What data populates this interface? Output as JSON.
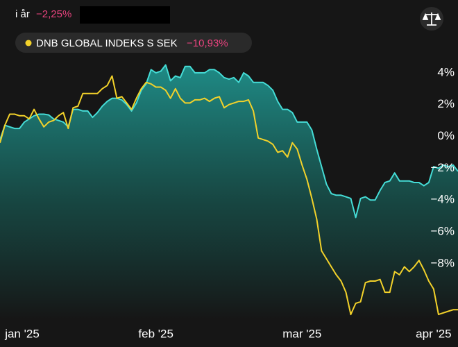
{
  "header": {
    "period": "i år",
    "return": "−2,25%"
  },
  "chart_data": {
    "type": "line",
    "categories": [
      null,
      null,
      null,
      null,
      "jan '25",
      null,
      null,
      null,
      null,
      null,
      null,
      null,
      null,
      null,
      null,
      null,
      null,
      null,
      null,
      null,
      null,
      null,
      null,
      null,
      null,
      null,
      null,
      null,
      null,
      null,
      null,
      null,
      "feb '25",
      null,
      null,
      null,
      null,
      null,
      null,
      null,
      null,
      null,
      null,
      null,
      null,
      null,
      null,
      null,
      null,
      null,
      null,
      null,
      null,
      null,
      null,
      null,
      null,
      null,
      null,
      null,
      null,
      null,
      "mar '25",
      null,
      null,
      null,
      null,
      null,
      null,
      null,
      null,
      null,
      null,
      null,
      null,
      null,
      null,
      null,
      null,
      null,
      null,
      null,
      null,
      null,
      null,
      null,
      null,
      null,
      null,
      "apr '25",
      null,
      null,
      null,
      null,
      null
    ],
    "series": [
      {
        "color": "#45dcd6",
        "area": true,
        "values": [
          -0.2,
          0.7,
          0.6,
          0.5,
          0.5,
          0.9,
          1.1,
          1.3,
          1.4,
          1.4,
          1.35,
          1.1,
          1.0,
          0.9,
          0.6,
          1.7,
          1.7,
          1.6,
          1.6,
          1.2,
          1.5,
          1.9,
          2.2,
          2.4,
          2.4,
          2.3,
          2.0,
          1.6,
          2.1,
          2.9,
          3.3,
          4.2,
          4.0,
          4.1,
          4.5,
          3.5,
          3.8,
          3.7,
          4.4,
          4.4,
          4.0,
          4.0,
          4.0,
          4.2,
          4.2,
          4.0,
          3.7,
          3.6,
          3.7,
          3.4,
          4.0,
          3.8,
          3.4,
          3.4,
          3.4,
          3.2,
          2.9,
          2.2,
          1.7,
          1.7,
          1.5,
          0.9,
          0.9,
          0.9,
          0.4,
          -0.8,
          -1.9,
          -3.0,
          -3.6,
          -3.7,
          -3.7,
          -3.8,
          -3.9,
          -5.1,
          -3.9,
          -3.8,
          -4.0,
          -4.0,
          -3.4,
          -2.9,
          -2.8,
          -2.3,
          -2.8,
          -2.8,
          -2.8,
          -2.9,
          -2.9,
          -3.1,
          -2.9,
          -1.9,
          -2.0,
          -1.8,
          -1.9,
          -1.8,
          -2.2
        ]
      },
      {
        "name": "DNB GLOBAL INDEKS S SEK",
        "return": "−10,93%",
        "color": "#f3d22a",
        "area": false,
        "values": [
          -0.4,
          0.7,
          1.4,
          1.4,
          1.3,
          1.3,
          1.1,
          1.7,
          1.1,
          0.6,
          0.9,
          1.0,
          1.3,
          1.5,
          0.5,
          1.8,
          1.9,
          2.7,
          2.7,
          2.7,
          2.7,
          3.0,
          3.2,
          3.8,
          2.4,
          2.5,
          2.1,
          1.7,
          2.4,
          3.0,
          3.4,
          3.3,
          3.1,
          3.1,
          2.9,
          2.4,
          3.0,
          2.4,
          2.1,
          2.1,
          2.3,
          2.3,
          2.4,
          2.2,
          2.4,
          2.5,
          1.8,
          2.0,
          2.1,
          2.2,
          2.2,
          2.3,
          1.6,
          -0.1,
          -0.2,
          -0.3,
          -0.5,
          -1.0,
          -0.9,
          -1.3,
          -0.4,
          -0.8,
          -1.8,
          -2.7,
          -3.9,
          -5.2,
          -7.2,
          -7.7,
          -8.2,
          -8.7,
          -9.1,
          -9.8,
          -11.2,
          -10.5,
          -10.4,
          -9.2,
          -9.1,
          -9.1,
          -9.0,
          -9.8,
          -9.8,
          -8.5,
          -8.7,
          -8.2,
          -8.5,
          -8.2,
          -7.8,
          -8.4,
          -9.1,
          -9.6,
          -11.2,
          -11.1,
          -11.0,
          -10.9,
          -10.9
        ]
      }
    ],
    "ylim": [
      -11.5,
      5
    ],
    "yticks": [
      {
        "value": 4,
        "label": "4%"
      },
      {
        "value": 2,
        "label": "2%"
      },
      {
        "value": 0,
        "label": "0%"
      },
      {
        "value": -2,
        "label": "−2%"
      },
      {
        "value": -4,
        "label": "−4%"
      },
      {
        "value": -6,
        "label": "−6%"
      },
      {
        "value": -8,
        "label": "−8%"
      }
    ],
    "grid": false
  }
}
